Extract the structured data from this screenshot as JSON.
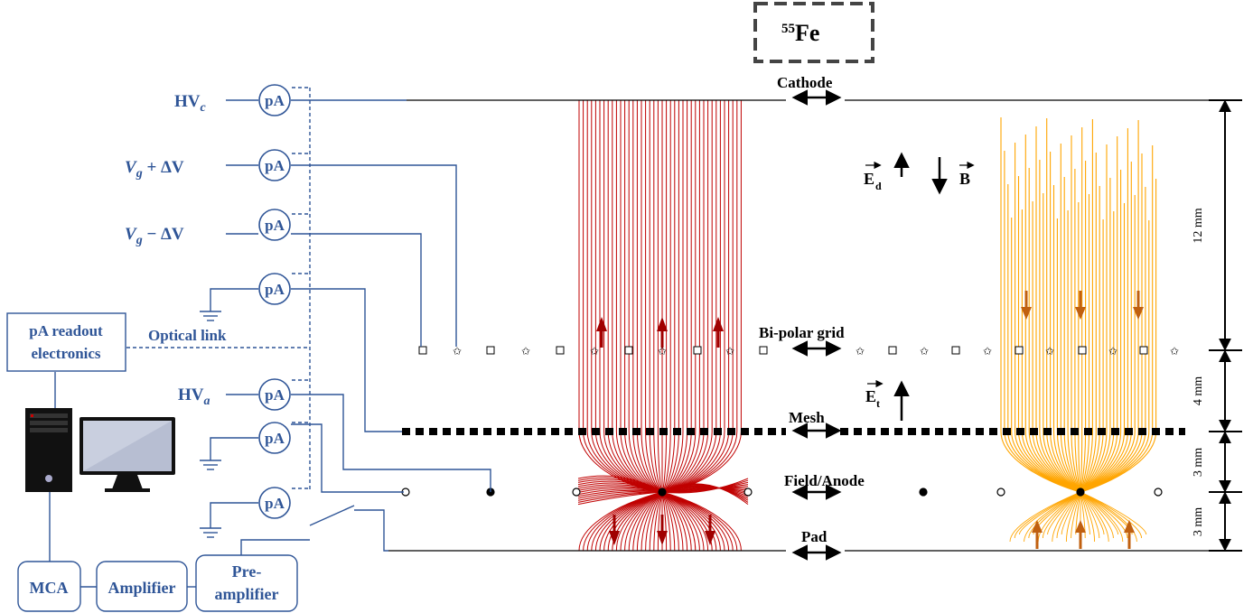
{
  "source": {
    "label": "55Fe",
    "mass_number": "55",
    "element": "Fe"
  },
  "electrodes": {
    "cathode": "Cathode",
    "grid": "Bi-polar grid",
    "mesh": "Mesh",
    "field_anode": "Field/Anode",
    "pad": "Pad"
  },
  "fields": {
    "drift": "E",
    "drift_sub": "d",
    "magnetic": "B",
    "transfer": "E",
    "transfer_sub": "t"
  },
  "dimensions": [
    "12 mm",
    "4 mm",
    "3 mm",
    "3 mm"
  ],
  "voltages": {
    "hv_c_main": "HV",
    "hv_c_sub": "c",
    "vg_plus_main": "V",
    "vg_plus_sub": "g",
    "vg_plus_rest": " + ΔV",
    "vg_minus_main": "V",
    "vg_minus_sub": "g",
    "vg_minus_rest": " − ΔV",
    "hv_a_main": "HV",
    "hv_a_sub": "a"
  },
  "meter_label": "pA",
  "readout": {
    "line1": "pA readout",
    "line2": "electronics"
  },
  "optical_link": "Optical link",
  "chain": {
    "mca": "MCA",
    "amplifier": "Amplifier",
    "preamp_line1": "Pre-",
    "preamp_line2": "amplifier"
  },
  "colors": {
    "circuit": "#2F5597",
    "electrons_left": "#C00000",
    "electrons_right": "#FFA500",
    "arrow_left": "#A00000",
    "arrow_right": "#C06010"
  }
}
